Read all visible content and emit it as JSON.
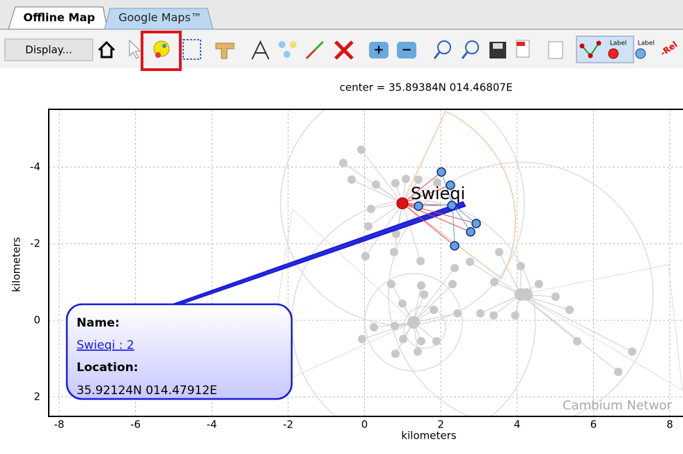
{
  "tabs": [
    "Offline Map",
    "Google Maps™"
  ],
  "toolbar": {
    "display_button": "Display...",
    "label_icons": [
      "Label",
      "Label"
    ],
    "cut_label": "-Rel"
  },
  "map": {
    "center": "center = 35.89384N 014.46807E",
    "x_label": "kilometers",
    "y_label": "kilometers",
    "xticks": [
      -8,
      -6,
      -4,
      -2,
      0,
      2,
      4,
      6,
      8
    ],
    "yticks": [
      -4,
      -2,
      0,
      2
    ],
    "node_label": "Swieqi",
    "watermark": "Cambium Networ"
  },
  "tooltip": {
    "name_heading": "Name:",
    "name": "Swieqi : 2",
    "location_heading": "Location:",
    "location": "35.92124N 014.47912E"
  }
}
